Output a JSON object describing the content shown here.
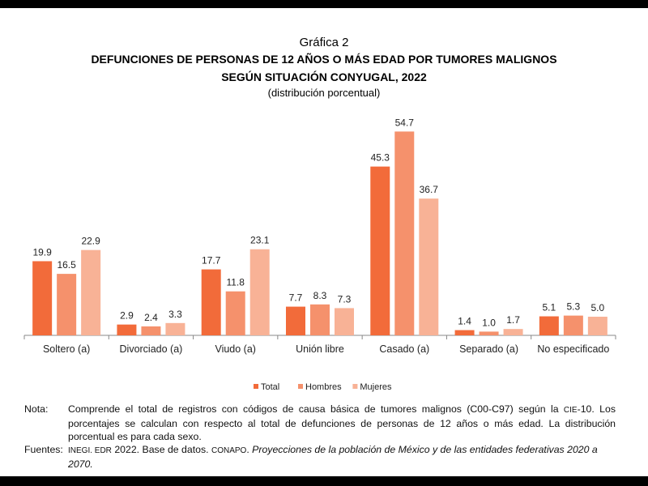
{
  "header": {
    "graph_label": "Gráfica 2",
    "title_line1": "DEFUNCIONES DE PERSONAS DE 12 AÑOS O MÁS EDAD POR TUMORES MALIGNOS",
    "title_line2": "SEGÚN SITUACIÓN CONYUGAL, 2022",
    "subtitle": "(distribución porcentual)"
  },
  "chart_data": {
    "type": "bar",
    "title": "DEFUNCIONES DE PERSONAS DE 12 AÑOS O MÁS EDAD POR TUMORES MALIGNOS SEGÚN SITUACIÓN CONYUGAL, 2022",
    "subtitle": "(distribución porcentual)",
    "xlabel": "",
    "ylabel": "",
    "ylim": [
      0,
      55
    ],
    "grid": false,
    "legend_position": "bottom",
    "categories": [
      "Soltero (a)",
      "Divorciado (a)",
      "Viudo (a)",
      "Unión libre",
      "Casado (a)",
      "Separado (a)",
      "No especificado"
    ],
    "series": [
      {
        "name": "Total",
        "color": "#F26B3A",
        "values": [
          19.9,
          2.9,
          17.7,
          7.7,
          45.3,
          1.4,
          5.1
        ]
      },
      {
        "name": "Hombres",
        "color": "#F5916C",
        "values": [
          16.5,
          2.4,
          11.8,
          8.3,
          54.7,
          1.0,
          5.3
        ]
      },
      {
        "name": "Mujeres",
        "color": "#F8B296",
        "values": [
          22.9,
          3.3,
          23.1,
          7.3,
          36.7,
          1.7,
          5.0
        ]
      }
    ]
  },
  "notes": {
    "nota_label": "Nota:",
    "nota_text_a": "Comprende el total de registros con códigos de causa básica de tumores malignos (C00-C97) según la ",
    "nota_cie": "CIE",
    "nota_text_b": "-10. Los porcentajes se calculan con respecto al total de defunciones de personas de 12 años o más edad. La distribución porcentual es para cada sexo.",
    "fuentes_label": "Fuentes:",
    "fuentes_inegi": "INEGI. EDR",
    "fuentes_text": " 2022. Base de datos. ",
    "fuentes_conapo": "CONAPO",
    "fuentes_dot": ". ",
    "fuentes_italic": "Proyecciones de la población de México y de las entidades federativas 2020 a 2070."
  }
}
